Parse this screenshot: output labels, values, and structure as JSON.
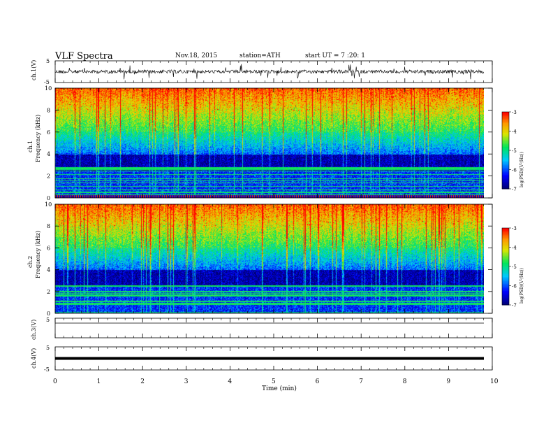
{
  "header": {
    "title": "VLF  Spectra",
    "date": "Nov.18, 2015",
    "station": "station=ATH",
    "start": "start  UT  =    7  :20: 1"
  },
  "colors": {
    "low": "#000080",
    "mid_blue": "#0000ff",
    "cyan": "#00c8ff",
    "green": "#00e060",
    "yellow": "#e6e600",
    "orange": "#ff9900",
    "high": "#ff0000",
    "trace": "#000000"
  },
  "chart_data": [
    {
      "type": "line",
      "ylabel": "ch.1(V)",
      "ylim": [
        -5,
        5
      ],
      "yticks": [
        "5",
        "-5"
      ],
      "xlim": [
        0,
        10
      ],
      "description_series": "noisy waveform near 0 V with spikes up to about ±4 V",
      "trace_level": 0
    },
    {
      "type": "heatmap",
      "ylabel": "ch.1\nFrequency  (kHz)",
      "ylabel_channel": "ch.1",
      "ylabel_axis": "Frequency  (kHz)",
      "ylim": [
        0,
        10
      ],
      "yticks": [
        "0",
        "2",
        "4",
        "6",
        "8",
        "10"
      ],
      "colorbar": {
        "label": "log(PSD/(V²/Hz))",
        "ticks": [
          "-3",
          "-4",
          "-5",
          "-6",
          "-7"
        ],
        "range": [
          -7,
          -3
        ]
      }
    },
    {
      "type": "heatmap",
      "ylabel": "ch.2\nFrequency  (kHz)",
      "ylabel_channel": "ch.2",
      "ylabel_axis": "Frequency  (kHz)",
      "ylim": [
        0,
        10
      ],
      "yticks": [
        "0",
        "2",
        "4",
        "6",
        "8",
        "10"
      ],
      "colorbar": {
        "label": "log(PSD/(V²/Hz))",
        "ticks": [
          "-3",
          "-4",
          "-5",
          "-6",
          "-7"
        ],
        "range": [
          -7,
          -3
        ]
      }
    },
    {
      "type": "line",
      "ylabel": "ch.3(V)",
      "ylim": [
        -5,
        5
      ],
      "yticks": [
        "5"
      ],
      "xlim": [
        0,
        10
      ],
      "trace_level": 5
    },
    {
      "type": "line",
      "ylabel": "ch.4(V)",
      "ylim": [
        -5,
        5
      ],
      "yticks": [
        "5",
        "-5"
      ],
      "xlim": [
        0,
        10
      ],
      "trace_level": 0
    }
  ],
  "xaxis": {
    "label": "Time  (min)",
    "ticks": [
      "0",
      "1",
      "2",
      "3",
      "4",
      "5",
      "6",
      "7",
      "8",
      "9",
      "10"
    ],
    "xlim": [
      0,
      10
    ],
    "data_end": 9.8
  }
}
